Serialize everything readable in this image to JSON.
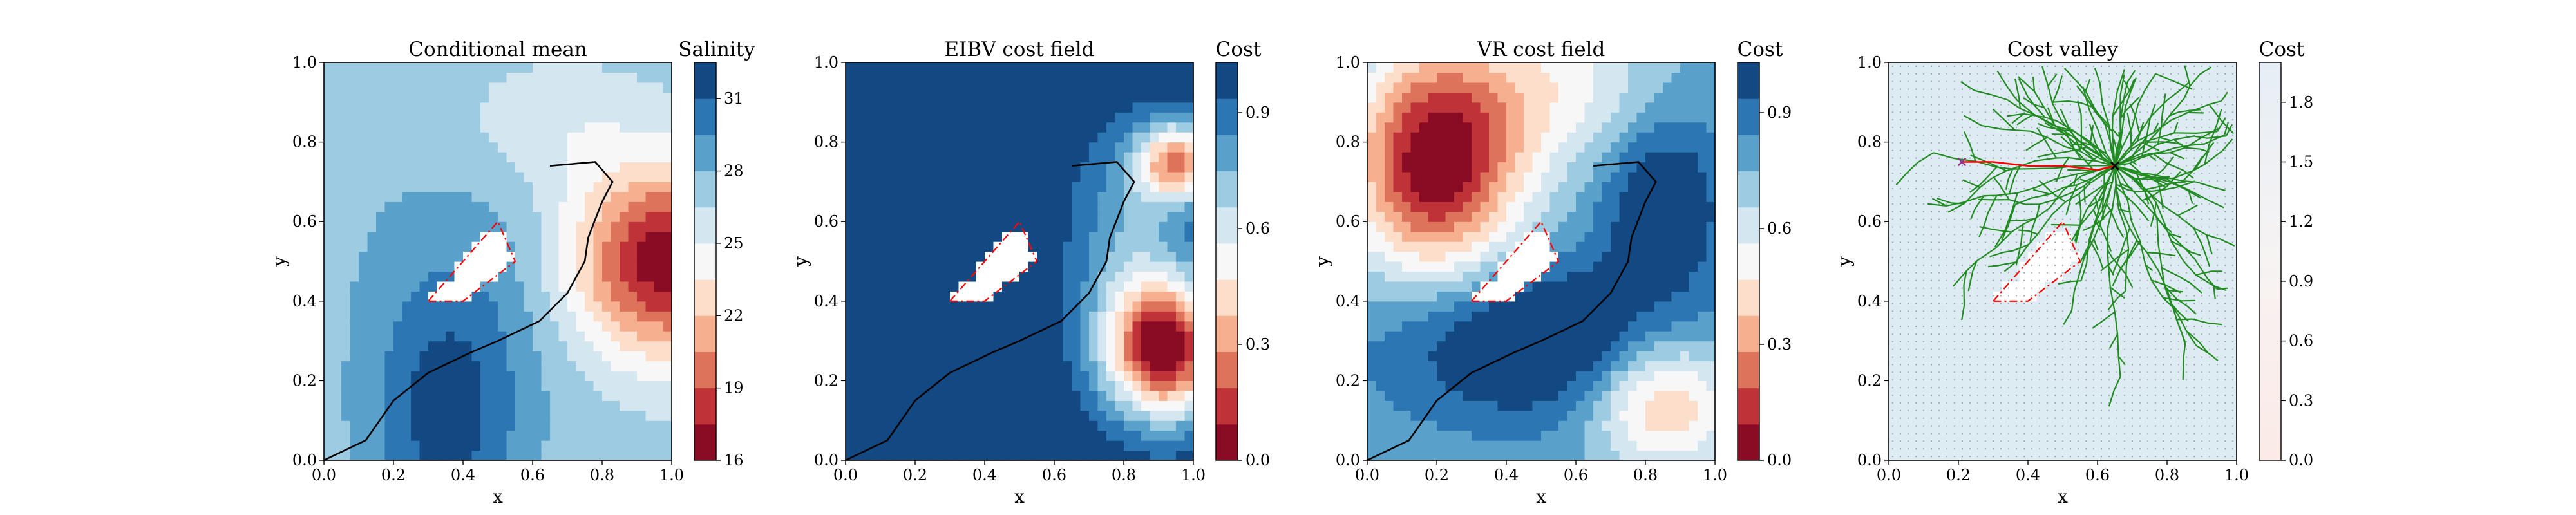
{
  "colors": {
    "low": "#67001f",
    "mid": "#f7f7f7",
    "high": "#053061",
    "path": "#000000",
    "obstacle_fill": "#ffffff",
    "obstacle_edge": "#ff0000",
    "tree": "#228b22",
    "valley_path": "#ff0000"
  },
  "chart_data": [
    {
      "type": "heatmap",
      "title": "Conditional mean",
      "xlabel": "x",
      "ylabel": "y",
      "xlim": [
        0,
        1
      ],
      "ylim": [
        0,
        1
      ],
      "xticks": [
        "0.0",
        "0.2",
        "0.4",
        "0.6",
        "0.8",
        "1.0"
      ],
      "yticks": [
        "0.0",
        "0.2",
        "0.4",
        "0.6",
        "0.8",
        "1.0"
      ],
      "colorbar": {
        "title": "Salinity",
        "range": [
          16,
          32.5
        ],
        "levels": 11,
        "ticks": [
          "16",
          "19",
          "22",
          "25",
          "28",
          "31"
        ],
        "tick_values": [
          16,
          19,
          22,
          25,
          28,
          31
        ]
      },
      "obstacle": [
        [
          0.3,
          0.4
        ],
        [
          0.5,
          0.6
        ],
        [
          0.55,
          0.5
        ],
        [
          0.4,
          0.4
        ],
        [
          0.3,
          0.4
        ]
      ],
      "path": [
        [
          0.0,
          0.0
        ],
        [
          0.12,
          0.05
        ],
        [
          0.2,
          0.15
        ],
        [
          0.3,
          0.22
        ],
        [
          0.42,
          0.27
        ],
        [
          0.5,
          0.3
        ],
        [
          0.62,
          0.35
        ],
        [
          0.7,
          0.42
        ],
        [
          0.75,
          0.5
        ],
        [
          0.76,
          0.56
        ],
        [
          0.8,
          0.65
        ],
        [
          0.83,
          0.7
        ],
        [
          0.78,
          0.75
        ],
        [
          0.65,
          0.74
        ]
      ],
      "field": {
        "base": 27.2,
        "blobs": [
          {
            "cx": 0.98,
            "cy": 0.5,
            "sx": 0.2,
            "sy": 0.17,
            "a": -11
          },
          {
            "cx": 0.35,
            "cy": 0.1,
            "sx": 0.15,
            "sy": 0.22,
            "a": 4.5
          },
          {
            "cx": 0.5,
            "cy": 0.45,
            "sx": 0.25,
            "sy": 0.2,
            "a": 1.5
          },
          {
            "cx": 0.2,
            "cy": 0.9,
            "sx": 0.5,
            "sy": 0.3,
            "a": 0.4
          },
          {
            "cx": 0.65,
            "cy": 0.85,
            "sx": 0.2,
            "sy": 0.12,
            "a": -2
          }
        ]
      }
    },
    {
      "type": "heatmap",
      "title": "EIBV cost field",
      "xlabel": "x",
      "ylabel": "y",
      "xlim": [
        0,
        1
      ],
      "ylim": [
        0,
        1
      ],
      "xticks": [
        "0.0",
        "0.2",
        "0.4",
        "0.6",
        "0.8",
        "1.0"
      ],
      "yticks": [
        "0.0",
        "0.2",
        "0.4",
        "0.6",
        "0.8",
        "1.0"
      ],
      "colorbar": {
        "title": "Cost",
        "range": [
          0,
          1.03
        ],
        "levels": 11,
        "ticks": [
          "0.0",
          "0.3",
          "0.6",
          "0.9"
        ],
        "tick_values": [
          0.0,
          0.3,
          0.6,
          0.9
        ]
      },
      "obstacle": [
        [
          0.3,
          0.4
        ],
        [
          0.5,
          0.6
        ],
        [
          0.55,
          0.5
        ],
        [
          0.4,
          0.4
        ],
        [
          0.3,
          0.4
        ]
      ],
      "path": [
        [
          0.0,
          0.0
        ],
        [
          0.12,
          0.05
        ],
        [
          0.2,
          0.15
        ],
        [
          0.3,
          0.22
        ],
        [
          0.42,
          0.27
        ],
        [
          0.5,
          0.3
        ],
        [
          0.62,
          0.35
        ],
        [
          0.7,
          0.42
        ],
        [
          0.75,
          0.5
        ],
        [
          0.76,
          0.56
        ],
        [
          0.8,
          0.65
        ],
        [
          0.83,
          0.7
        ],
        [
          0.78,
          0.75
        ],
        [
          0.65,
          0.74
        ]
      ],
      "field": {
        "base": 1.02,
        "blobs": [
          {
            "cx": 0.92,
            "cy": 0.28,
            "sx": 0.12,
            "sy": 0.12,
            "a": -1.0
          },
          {
            "cx": 0.95,
            "cy": 0.75,
            "sx": 0.08,
            "sy": 0.07,
            "a": -0.7
          },
          {
            "cx": 0.82,
            "cy": 0.55,
            "sx": 0.12,
            "sy": 0.2,
            "a": -0.25
          }
        ]
      }
    },
    {
      "type": "heatmap",
      "title": "VR cost field",
      "xlabel": "x",
      "ylabel": "y",
      "xlim": [
        0,
        1
      ],
      "ylim": [
        0,
        1
      ],
      "xticks": [
        "0.0",
        "0.2",
        "0.4",
        "0.6",
        "0.8",
        "1.0"
      ],
      "yticks": [
        "0.0",
        "0.2",
        "0.4",
        "0.6",
        "0.8",
        "1.0"
      ],
      "colorbar": {
        "title": "Cost",
        "range": [
          0,
          1.03
        ],
        "levels": 11,
        "ticks": [
          "0.0",
          "0.3",
          "0.6",
          "0.9"
        ],
        "tick_values": [
          0.0,
          0.3,
          0.6,
          0.9
        ]
      },
      "obstacle": [
        [
          0.3,
          0.4
        ],
        [
          0.5,
          0.6
        ],
        [
          0.55,
          0.5
        ],
        [
          0.4,
          0.4
        ],
        [
          0.3,
          0.4
        ]
      ],
      "path": [
        [
          0.0,
          0.0
        ],
        [
          0.12,
          0.05
        ],
        [
          0.2,
          0.15
        ],
        [
          0.3,
          0.22
        ],
        [
          0.42,
          0.27
        ],
        [
          0.5,
          0.3
        ],
        [
          0.62,
          0.35
        ],
        [
          0.7,
          0.42
        ],
        [
          0.75,
          0.5
        ],
        [
          0.76,
          0.56
        ],
        [
          0.8,
          0.65
        ],
        [
          0.83,
          0.7
        ],
        [
          0.78,
          0.75
        ],
        [
          0.65,
          0.74
        ]
      ],
      "field": {
        "base": 0.78,
        "blobs": [
          {
            "cx": 0.2,
            "cy": 0.75,
            "sx": 0.17,
            "sy": 0.2,
            "a": -0.78
          },
          {
            "cx": 0.85,
            "cy": 0.15,
            "sx": 0.15,
            "sy": 0.12,
            "a": -0.45
          },
          {
            "cx": 0.5,
            "cy": 0.3,
            "sx": 0.3,
            "sy": 0.14,
            "a": 0.35
          },
          {
            "cx": 0.85,
            "cy": 0.65,
            "sx": 0.12,
            "sy": 0.15,
            "a": 0.3
          },
          {
            "cx": 0.55,
            "cy": 0.95,
            "sx": 0.2,
            "sy": 0.15,
            "a": -0.25
          }
        ]
      }
    },
    {
      "type": "heatmap",
      "title": "Cost valley",
      "xlabel": "x",
      "ylabel": "y",
      "xlim": [
        0,
        1
      ],
      "ylim": [
        0,
        1
      ],
      "xticks": [
        "0.0",
        "0.2",
        "0.4",
        "0.6",
        "0.8",
        "1.0"
      ],
      "yticks": [
        "0.0",
        "0.2",
        "0.4",
        "0.6",
        "0.8",
        "1.0"
      ],
      "colorbar": {
        "title": "Cost",
        "range": [
          0,
          2.0
        ],
        "levels": 0,
        "ticks": [
          "0.0",
          "0.3",
          "0.6",
          "0.9",
          "1.2",
          "1.5",
          "1.8"
        ],
        "tick_values": [
          0.0,
          0.3,
          0.6,
          0.9,
          1.2,
          1.5,
          1.8
        ]
      },
      "obstacle": [
        [
          0.3,
          0.4
        ],
        [
          0.5,
          0.6
        ],
        [
          0.55,
          0.5
        ],
        [
          0.4,
          0.4
        ],
        [
          0.3,
          0.4
        ]
      ],
      "tree_root": [
        0.65,
        0.74
      ],
      "start_marker": [
        0.65,
        0.74
      ],
      "target_marker": [
        0.21,
        0.75
      ],
      "valley_path": [
        [
          0.65,
          0.74
        ],
        [
          0.6,
          0.73
        ],
        [
          0.5,
          0.74
        ],
        [
          0.4,
          0.74
        ],
        [
          0.3,
          0.75
        ],
        [
          0.21,
          0.75
        ]
      ],
      "field": {
        "base": 1.7,
        "blobs": []
      }
    }
  ]
}
